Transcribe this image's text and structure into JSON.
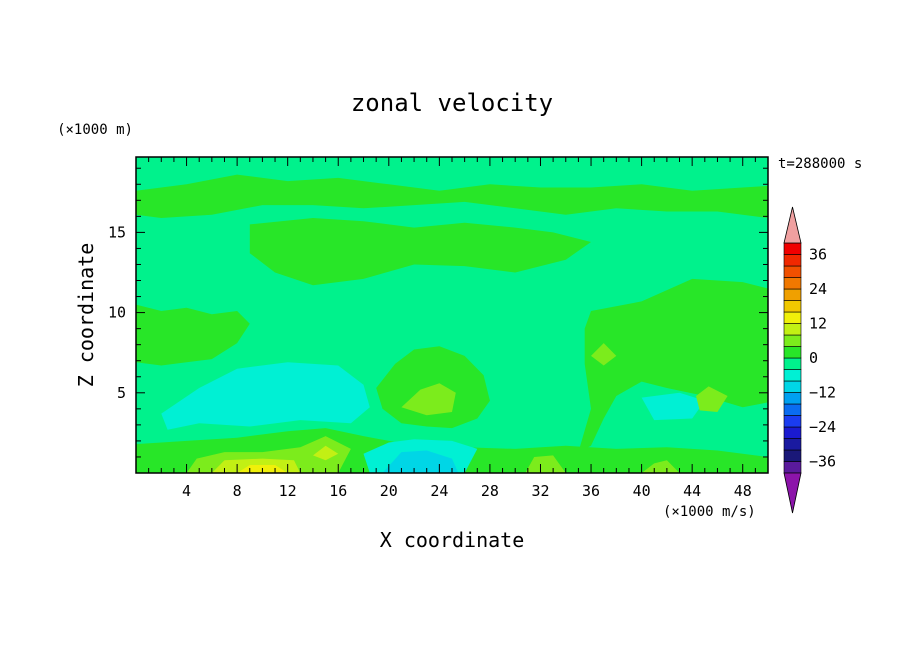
{
  "chart_data": {
    "type": "heatmap",
    "title": "zonal velocity",
    "xlabel": "X coordinate",
    "ylabel": "Z coordinate",
    "y_units": "(×1000 m)",
    "value_units": "(×1000 m/s)",
    "time_label": "t=288000 s",
    "x_ticks": [
      4,
      8,
      12,
      16,
      20,
      24,
      28,
      32,
      36,
      40,
      44,
      48
    ],
    "y_ticks": [
      5,
      10,
      15
    ],
    "xlim": [
      0,
      50
    ],
    "ylim": [
      0,
      19.7
    ],
    "colorbar": {
      "levels": [
        -40,
        -36,
        -32,
        -28,
        -24,
        -20,
        -16,
        -12,
        -8,
        -4,
        0,
        4,
        8,
        12,
        16,
        20,
        24,
        28,
        32,
        36,
        40
      ],
      "tick_labels": [
        "36",
        "24",
        "12",
        "0",
        "−12",
        "−24",
        "−36"
      ],
      "tick_values": [
        36,
        24,
        12,
        0,
        -12,
        -24,
        -36
      ],
      "band_colors": [
        "#5a1a9c",
        "#1a1878",
        "#1a1aa0",
        "#1a1ad0",
        "#1a3cf0",
        "#0a6cf0",
        "#00a0f0",
        "#00d6e6",
        "#00f0d4",
        "#00f28c",
        "#28e628",
        "#7cec1c",
        "#c2f014",
        "#f0f00a",
        "#f0c800",
        "#f0a000",
        "#f07800",
        "#f05000",
        "#f02800",
        "#f00000"
      ],
      "under_color": "#8c14aa",
      "over_color": "#f0a0a0"
    },
    "colors": {
      "neutral": "#00f28c",
      "weak_positive": "#28e628",
      "moderate_positive": "#7cec1c",
      "strong_positive": "#c2f014",
      "peak_positive": "#f0f00a",
      "weak_negative": "#00f0d4",
      "moderate_negative": "#00d6e6"
    },
    "field_regions": [
      {
        "band": "weak_positive",
        "points": [
          [
            0.0,
            17.6
          ],
          [
            4.0,
            18.0
          ],
          [
            8.0,
            18.6
          ],
          [
            12.0,
            18.2
          ],
          [
            16.0,
            18.4
          ],
          [
            20.0,
            18.0
          ],
          [
            24.0,
            17.6
          ],
          [
            28.0,
            18.0
          ],
          [
            32.0,
            17.8
          ],
          [
            36.0,
            17.8
          ],
          [
            40.0,
            18.0
          ],
          [
            44.0,
            17.6
          ],
          [
            48.0,
            17.8
          ],
          [
            50.0,
            17.9
          ],
          [
            50.0,
            15.9
          ],
          [
            46.0,
            16.3
          ],
          [
            42.0,
            16.3
          ],
          [
            38.0,
            16.5
          ],
          [
            34.0,
            16.1
          ],
          [
            30.0,
            16.5
          ],
          [
            26.0,
            16.9
          ],
          [
            22.0,
            16.7
          ],
          [
            18.0,
            16.5
          ],
          [
            14.0,
            16.7
          ],
          [
            10.0,
            16.7
          ],
          [
            6.0,
            16.1
          ],
          [
            2.0,
            15.9
          ],
          [
            0.0,
            16.1
          ]
        ]
      },
      {
        "band": "weak_positive",
        "points": [
          [
            9.0,
            15.5
          ],
          [
            14.0,
            15.9
          ],
          [
            18.0,
            15.7
          ],
          [
            22.0,
            15.3
          ],
          [
            26.0,
            15.6
          ],
          [
            30.0,
            15.3
          ],
          [
            33.0,
            15.0
          ],
          [
            36.0,
            14.4
          ],
          [
            34.0,
            13.3
          ],
          [
            30.0,
            12.5
          ],
          [
            26.0,
            12.9
          ],
          [
            22.0,
            13.0
          ],
          [
            18.0,
            12.1
          ],
          [
            14.0,
            11.7
          ],
          [
            11.0,
            12.5
          ],
          [
            9.0,
            13.7
          ]
        ]
      },
      {
        "band": "weak_positive",
        "points": [
          [
            0.0,
            10.5
          ],
          [
            2.0,
            10.1
          ],
          [
            4.0,
            10.3
          ],
          [
            6.0,
            9.9
          ],
          [
            8.0,
            10.1
          ],
          [
            9.0,
            9.3
          ],
          [
            8.0,
            8.1
          ],
          [
            6.0,
            7.1
          ],
          [
            4.0,
            6.9
          ],
          [
            2.0,
            6.7
          ],
          [
            0.0,
            6.9
          ]
        ]
      },
      {
        "band": "weak_positive",
        "points": [
          [
            36.0,
            10.1
          ],
          [
            40.0,
            10.7
          ],
          [
            44.0,
            12.1
          ],
          [
            48.0,
            11.9
          ],
          [
            50.0,
            11.5
          ],
          [
            50.0,
            4.4
          ],
          [
            48.0,
            4.1
          ],
          [
            45.0,
            4.8
          ],
          [
            42.0,
            5.3
          ],
          [
            40.0,
            5.7
          ],
          [
            38.0,
            4.8
          ],
          [
            37.0,
            3.4
          ],
          [
            36.0,
            1.7
          ],
          [
            35.0,
            1.3
          ],
          [
            36.0,
            4.0
          ],
          [
            35.5,
            6.8
          ],
          [
            35.5,
            9.0
          ]
        ]
      },
      {
        "band": "weak_positive",
        "points": [
          [
            19.0,
            5.3
          ],
          [
            20.5,
            6.8
          ],
          [
            22.0,
            7.7
          ],
          [
            24.0,
            7.9
          ],
          [
            26.0,
            7.3
          ],
          [
            27.5,
            6.1
          ],
          [
            28.0,
            4.5
          ],
          [
            27.0,
            3.4
          ],
          [
            25.0,
            2.8
          ],
          [
            23.0,
            2.9
          ],
          [
            21.0,
            3.1
          ],
          [
            19.5,
            4.0
          ]
        ]
      },
      {
        "band": "weak_positive",
        "points": [
          [
            0.0,
            0.0
          ],
          [
            50.0,
            0.0
          ],
          [
            50.0,
            1.0
          ],
          [
            46.0,
            1.4
          ],
          [
            42.0,
            1.6
          ],
          [
            38.0,
            1.5
          ],
          [
            34.0,
            1.7
          ],
          [
            30.0,
            1.5
          ],
          [
            26.0,
            1.6
          ],
          [
            22.0,
            1.7
          ],
          [
            18.0,
            2.3
          ],
          [
            15.0,
            2.8
          ],
          [
            12.0,
            2.6
          ],
          [
            8.0,
            2.2
          ],
          [
            4.0,
            2.0
          ],
          [
            0.0,
            1.8
          ]
        ]
      },
      {
        "band": "weak_negative",
        "points": [
          [
            2.0,
            3.7
          ],
          [
            5.0,
            5.3
          ],
          [
            8.0,
            6.5
          ],
          [
            12.0,
            6.9
          ],
          [
            16.0,
            6.7
          ],
          [
            18.0,
            5.5
          ],
          [
            18.5,
            4.1
          ],
          [
            17.0,
            3.1
          ],
          [
            13.0,
            3.3
          ],
          [
            9.0,
            2.9
          ],
          [
            5.0,
            3.1
          ],
          [
            2.5,
            2.7
          ]
        ]
      },
      {
        "band": "weak_negative",
        "points": [
          [
            40.0,
            4.7
          ],
          [
            43.0,
            5.0
          ],
          [
            45.0,
            4.5
          ],
          [
            44.0,
            3.4
          ],
          [
            41.0,
            3.3
          ]
        ]
      },
      {
        "band": "weak_negative",
        "points": [
          [
            18.0,
            1.2
          ],
          [
            20.0,
            1.9
          ],
          [
            22.0,
            2.1
          ],
          [
            25.0,
            2.0
          ],
          [
            27.0,
            1.5
          ],
          [
            26.0,
            0.0
          ],
          [
            18.5,
            0.0
          ]
        ]
      },
      {
        "band": "moderate_negative",
        "points": [
          [
            19.5,
            0.0
          ],
          [
            21.0,
            1.3
          ],
          [
            23.0,
            1.4
          ],
          [
            25.0,
            0.9
          ],
          [
            25.5,
            0.0
          ]
        ]
      },
      {
        "band": "moderate_positive",
        "points": [
          [
            21.0,
            4.1
          ],
          [
            22.5,
            5.2
          ],
          [
            24.0,
            5.6
          ],
          [
            25.3,
            5.0
          ],
          [
            25.0,
            3.8
          ],
          [
            23.0,
            3.6
          ]
        ]
      },
      {
        "band": "moderate_positive",
        "points": [
          [
            36.0,
            7.3
          ],
          [
            37.0,
            8.1
          ],
          [
            38.0,
            7.3
          ],
          [
            37.0,
            6.7
          ]
        ]
      },
      {
        "band": "moderate_positive",
        "points": [
          [
            44.3,
            4.8
          ],
          [
            45.3,
            5.4
          ],
          [
            46.8,
            4.8
          ],
          [
            46.0,
            3.8
          ],
          [
            44.6,
            3.9
          ]
        ]
      },
      {
        "band": "moderate_positive",
        "points": [
          [
            4.0,
            0.0
          ],
          [
            4.8,
            0.9
          ],
          [
            7.0,
            1.3
          ],
          [
            10.0,
            1.3
          ],
          [
            13.0,
            1.6
          ],
          [
            15.0,
            2.3
          ],
          [
            17.0,
            1.5
          ],
          [
            16.0,
            0.0
          ]
        ]
      },
      {
        "band": "moderate_positive",
        "points": [
          [
            30.8,
            0.0
          ],
          [
            31.5,
            1.0
          ],
          [
            33.0,
            1.1
          ],
          [
            34.0,
            0.0
          ]
        ]
      },
      {
        "band": "moderate_positive",
        "points": [
          [
            40.0,
            0.0
          ],
          [
            41.0,
            0.6
          ],
          [
            42.0,
            0.8
          ],
          [
            43.0,
            0.0
          ]
        ]
      },
      {
        "band": "strong_positive",
        "points": [
          [
            6.0,
            0.0
          ],
          [
            7.0,
            0.8
          ],
          [
            10.0,
            0.9
          ],
          [
            12.5,
            0.8
          ],
          [
            13.0,
            0.0
          ]
        ]
      },
      {
        "band": "strong_positive",
        "points": [
          [
            14.0,
            1.1
          ],
          [
            15.0,
            1.7
          ],
          [
            16.0,
            1.2
          ],
          [
            15.0,
            0.8
          ]
        ]
      },
      {
        "band": "peak_positive",
        "points": [
          [
            8.0,
            0.0
          ],
          [
            9.0,
            0.5
          ],
          [
            11.0,
            0.5
          ],
          [
            12.0,
            0.0
          ]
        ]
      }
    ]
  }
}
